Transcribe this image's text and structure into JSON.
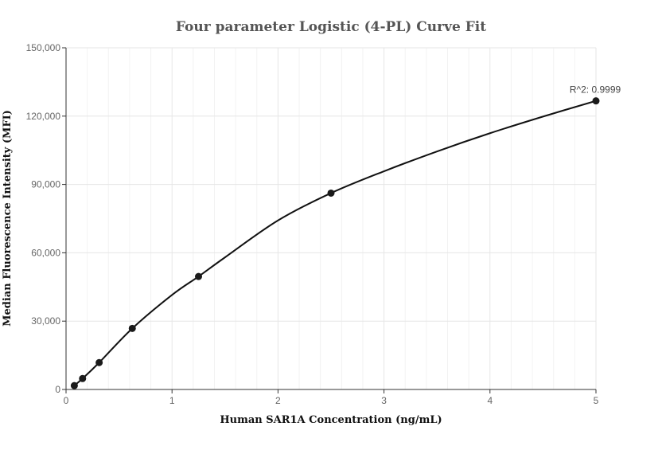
{
  "chart_data": {
    "type": "scatter",
    "title": "Four parameter Logistic (4-PL) Curve Fit",
    "xlabel": "Human SAR1A Concentration (ng/mL)",
    "ylabel": "Median Fluorescence Intensity (MFI)",
    "xlim": [
      0,
      5
    ],
    "ylim": [
      0,
      150000
    ],
    "x_ticks": [
      0,
      1,
      2,
      3,
      4,
      5
    ],
    "x_tick_labels": [
      "0",
      "1",
      "2",
      "3",
      "4",
      "5"
    ],
    "y_ticks": [
      0,
      30000,
      60000,
      90000,
      120000,
      150000
    ],
    "y_tick_labels": [
      "0",
      "30,000",
      "60,000",
      "90,000",
      "120,000",
      "150,000"
    ],
    "grid": true,
    "series": [
      {
        "type": "scatter",
        "x": [
          0.078,
          0.156,
          0.3125,
          0.625,
          1.25,
          2.5,
          5
        ],
        "y": [
          1700,
          4800,
          11800,
          26800,
          49600,
          86200,
          126700
        ]
      },
      {
        "type": "line",
        "x": [
          0.078,
          0.156,
          0.3125,
          0.625,
          1.0,
          1.25,
          1.5,
          2.0,
          2.5,
          3.0,
          3.5,
          4.0,
          4.5,
          5.0
        ],
        "y": [
          1700,
          4800,
          11800,
          26800,
          41500,
          49600,
          58000,
          74200,
          86200,
          95800,
          104500,
          112500,
          119800,
          126700
        ]
      }
    ],
    "annotations": [
      {
        "text": "R^2: 0.9999",
        "x": 5,
        "y": 126700
      }
    ],
    "colors": {
      "curve": "#111111",
      "marker": "#1a1a1a",
      "grid": "#e6e6e6",
      "axis": "#333333"
    }
  }
}
